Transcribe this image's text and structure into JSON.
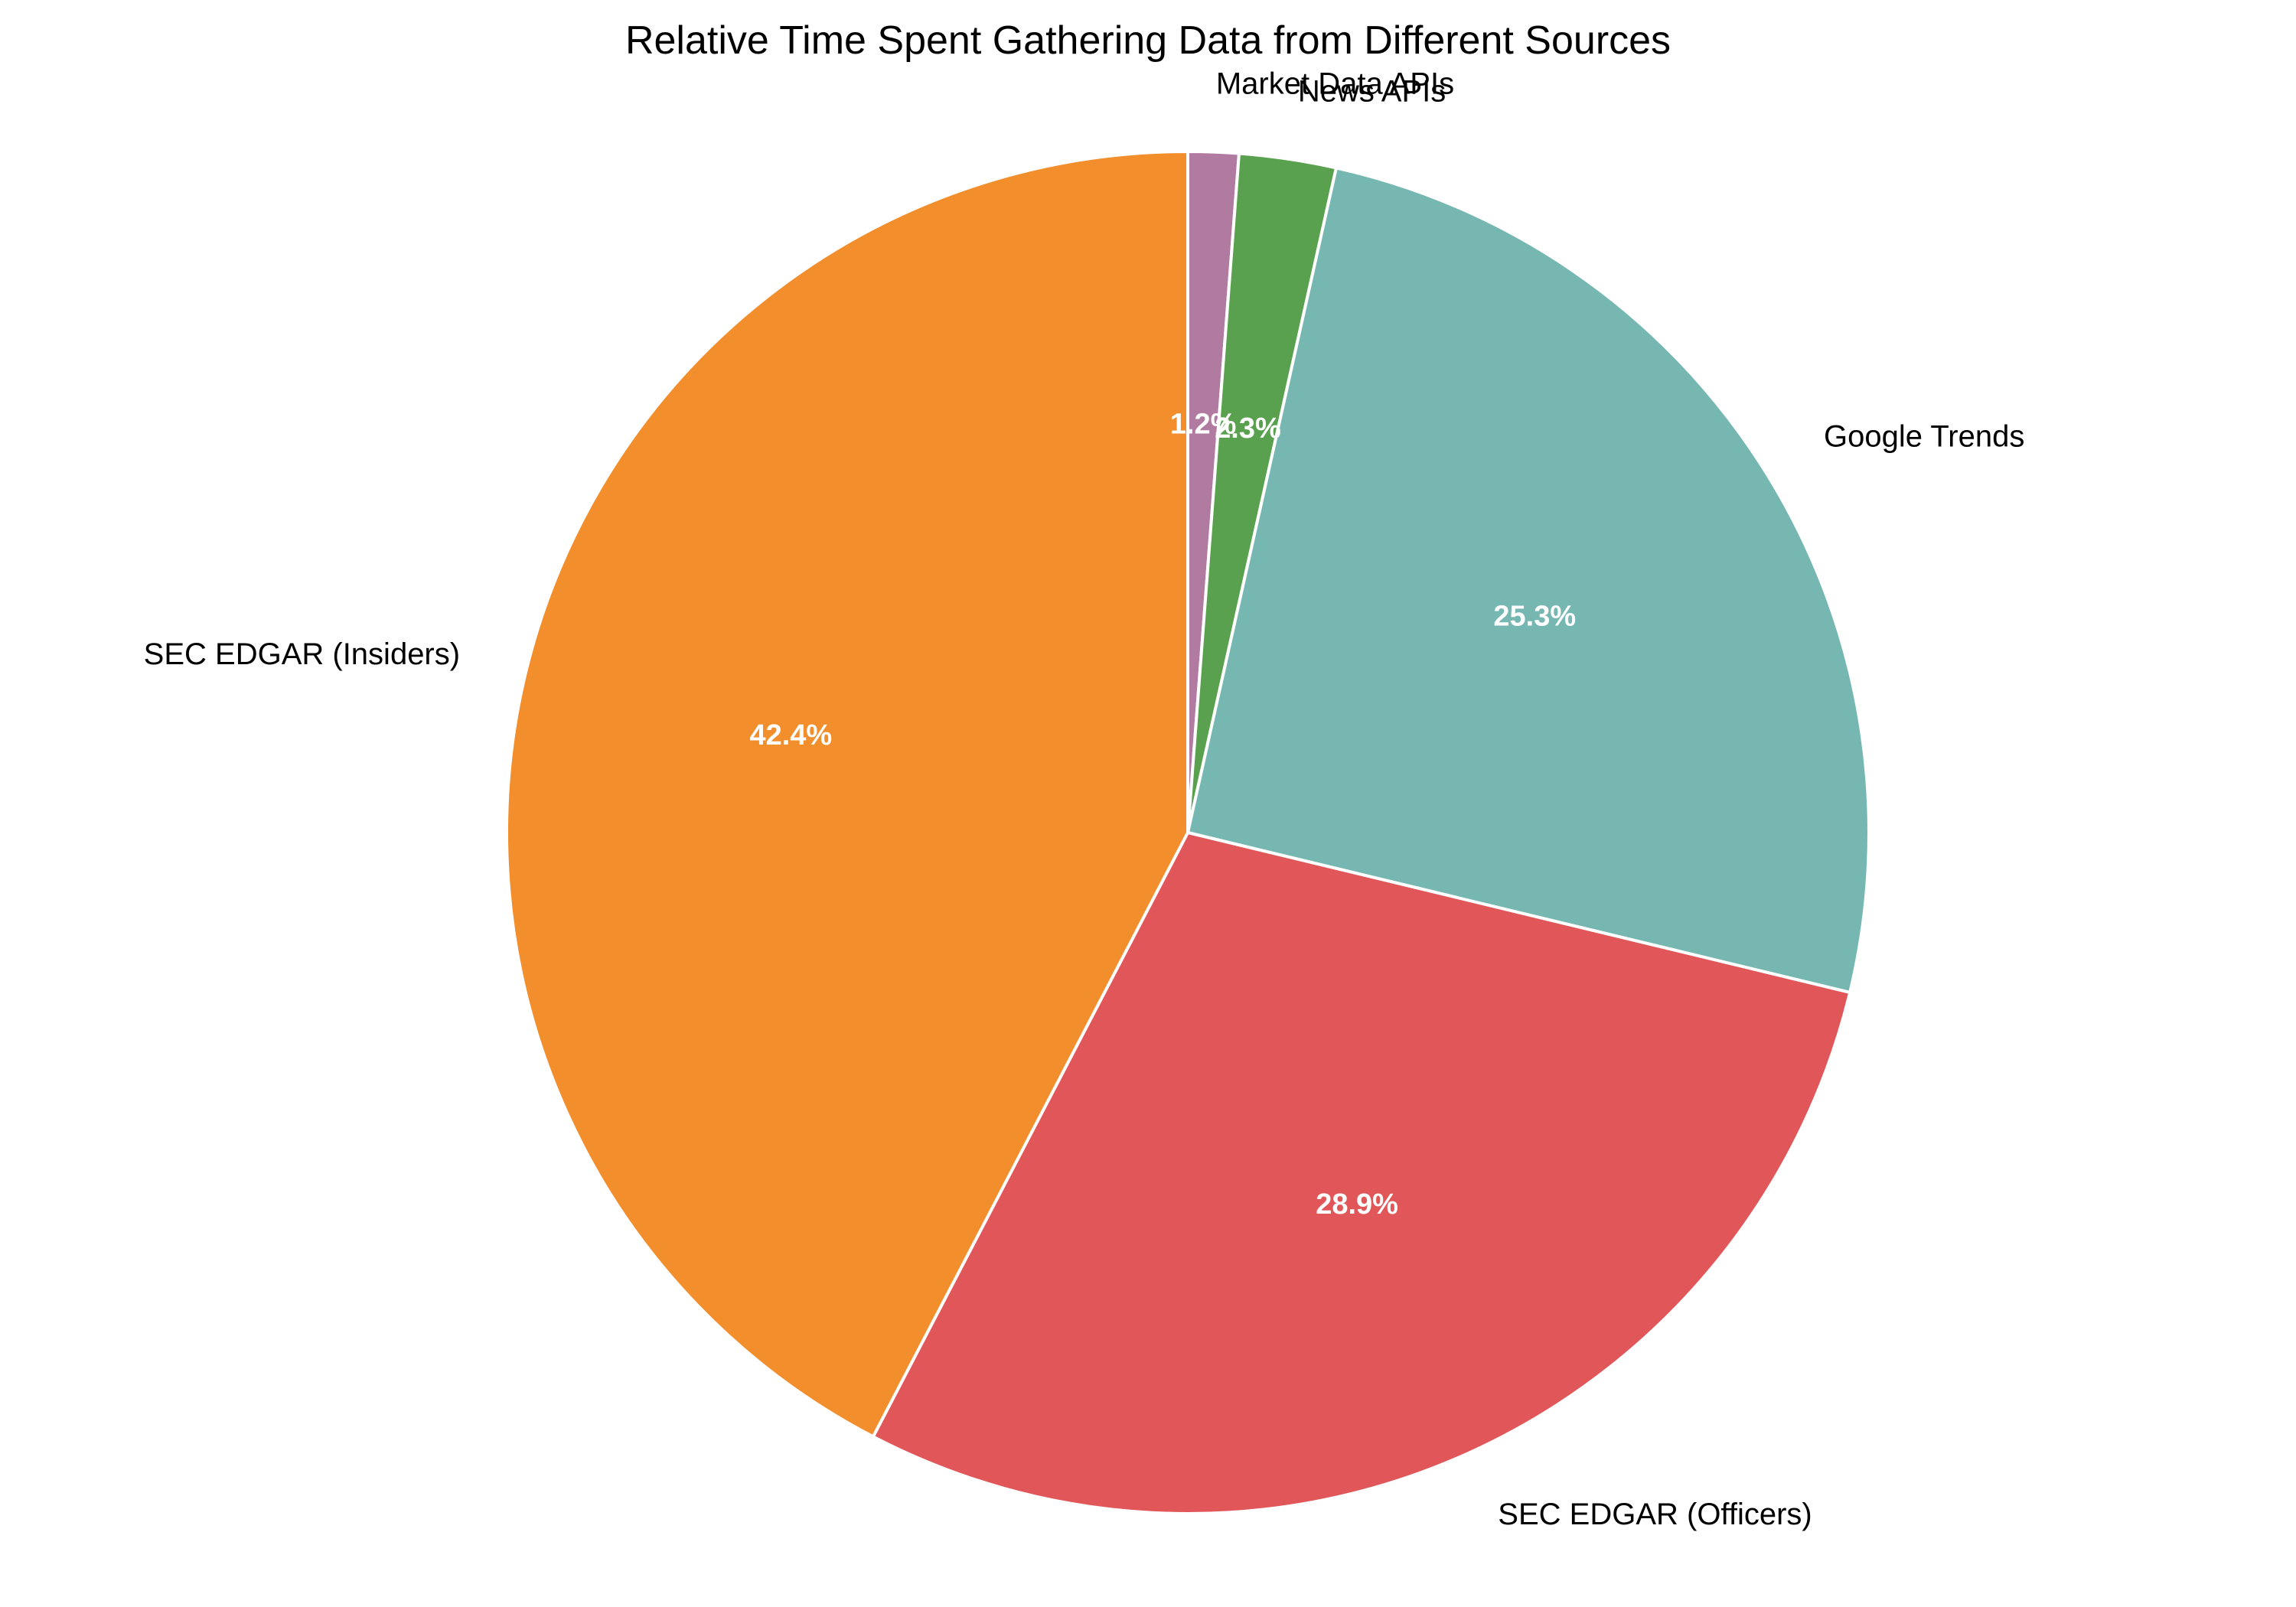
{
  "chart_data": {
    "type": "pie",
    "title": "Relative Time Spent Gathering Data from Different Sources",
    "categories": [
      "Market Data APIs",
      "News APIs",
      "Google Trends",
      "SEC EDGAR (Officers)",
      "SEC EDGAR (Insiders)"
    ],
    "values": [
      1.2,
      2.3,
      25.3,
      28.9,
      42.4
    ],
    "value_labels": [
      "1.2%",
      "2.3%",
      "25.3%",
      "28.9%",
      "42.4%"
    ],
    "colors": [
      "#b07aa1",
      "#59a14f",
      "#76b7b2",
      "#e15759",
      "#f28e2b"
    ],
    "start_angle": "top",
    "direction": "clockwise",
    "legend": "none"
  }
}
